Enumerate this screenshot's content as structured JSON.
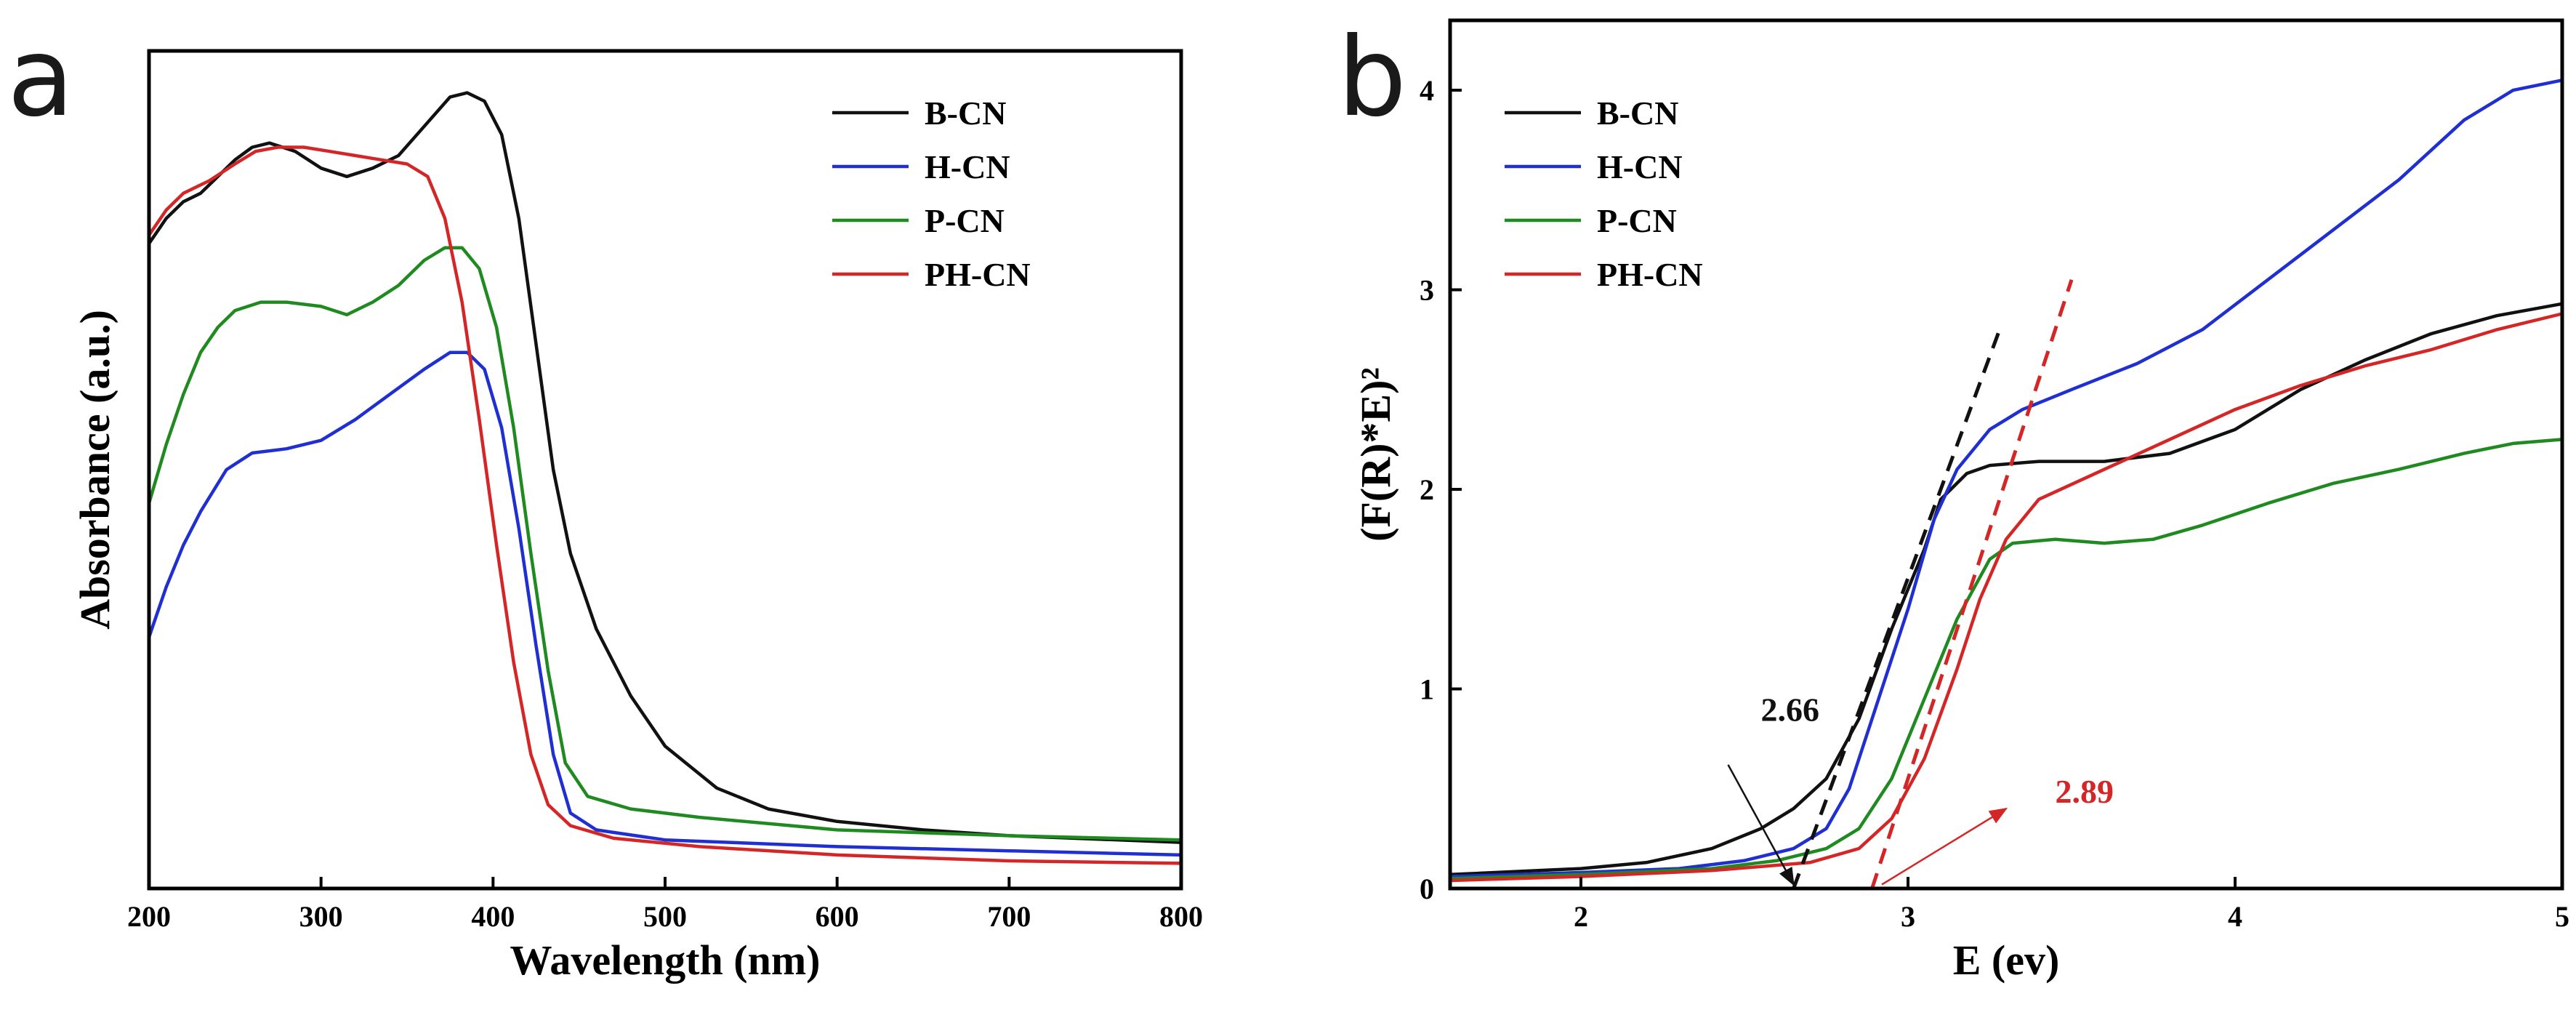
{
  "colors": {
    "B-CN": "#111111",
    "H-CN": "#1f2fd1",
    "P-CN": "#1f8a1f",
    "PH-CN": "#d42626"
  },
  "chart_data": [
    {
      "panel": "a",
      "type": "line",
      "xlabel": "Wavelength (nm)",
      "ylabel": "Absorbance (a.u.)",
      "xlim": [
        200,
        800
      ],
      "ylim": [
        0,
        1.0
      ],
      "xticks": [
        200,
        300,
        400,
        500,
        600,
        700,
        800
      ],
      "yticks": [],
      "legend": "top-right",
      "series": [
        {
          "name": "B-CN",
          "points": [
            [
              200,
              0.77
            ],
            [
              210,
              0.8
            ],
            [
              220,
              0.82
            ],
            [
              230,
              0.83
            ],
            [
              240,
              0.85
            ],
            [
              250,
              0.87
            ],
            [
              260,
              0.885
            ],
            [
              270,
              0.89
            ],
            [
              285,
              0.88
            ],
            [
              300,
              0.86
            ],
            [
              315,
              0.85
            ],
            [
              330,
              0.86
            ],
            [
              345,
              0.875
            ],
            [
              360,
              0.91
            ],
            [
              375,
              0.945
            ],
            [
              385,
              0.95
            ],
            [
              395,
              0.94
            ],
            [
              405,
              0.9
            ],
            [
              415,
              0.8
            ],
            [
              425,
              0.65
            ],
            [
              435,
              0.5
            ],
            [
              445,
              0.4
            ],
            [
              460,
              0.31
            ],
            [
              480,
              0.23
            ],
            [
              500,
              0.17
            ],
            [
              530,
              0.12
            ],
            [
              560,
              0.095
            ],
            [
              600,
              0.08
            ],
            [
              650,
              0.07
            ],
            [
              700,
              0.063
            ],
            [
              800,
              0.055
            ]
          ]
        },
        {
          "name": "H-CN",
          "points": [
            [
              200,
              0.3
            ],
            [
              210,
              0.36
            ],
            [
              220,
              0.41
            ],
            [
              230,
              0.45
            ],
            [
              245,
              0.5
            ],
            [
              260,
              0.52
            ],
            [
              280,
              0.525
            ],
            [
              300,
              0.535
            ],
            [
              320,
              0.56
            ],
            [
              340,
              0.59
            ],
            [
              360,
              0.62
            ],
            [
              375,
              0.64
            ],
            [
              385,
              0.64
            ],
            [
              395,
              0.62
            ],
            [
              405,
              0.55
            ],
            [
              415,
              0.43
            ],
            [
              425,
              0.29
            ],
            [
              435,
              0.16
            ],
            [
              445,
              0.09
            ],
            [
              460,
              0.07
            ],
            [
              500,
              0.058
            ],
            [
              600,
              0.05
            ],
            [
              700,
              0.045
            ],
            [
              800,
              0.04
            ]
          ]
        },
        {
          "name": "P-CN",
          "points": [
            [
              200,
              0.46
            ],
            [
              210,
              0.53
            ],
            [
              220,
              0.59
            ],
            [
              230,
              0.64
            ],
            [
              240,
              0.67
            ],
            [
              250,
              0.69
            ],
            [
              265,
              0.7
            ],
            [
              280,
              0.7
            ],
            [
              300,
              0.695
            ],
            [
              315,
              0.685
            ],
            [
              330,
              0.7
            ],
            [
              345,
              0.72
            ],
            [
              360,
              0.75
            ],
            [
              372,
              0.765
            ],
            [
              382,
              0.765
            ],
            [
              392,
              0.74
            ],
            [
              402,
              0.67
            ],
            [
              412,
              0.55
            ],
            [
              422,
              0.4
            ],
            [
              432,
              0.26
            ],
            [
              442,
              0.15
            ],
            [
              455,
              0.11
            ],
            [
              480,
              0.095
            ],
            [
              520,
              0.085
            ],
            [
              600,
              0.07
            ],
            [
              700,
              0.063
            ],
            [
              800,
              0.058
            ]
          ]
        },
        {
          "name": "PH-CN",
          "points": [
            [
              200,
              0.78
            ],
            [
              210,
              0.81
            ],
            [
              220,
              0.83
            ],
            [
              235,
              0.845
            ],
            [
              250,
              0.865
            ],
            [
              262,
              0.88
            ],
            [
              275,
              0.885
            ],
            [
              290,
              0.885
            ],
            [
              305,
              0.88
            ],
            [
              320,
              0.875
            ],
            [
              335,
              0.87
            ],
            [
              350,
              0.865
            ],
            [
              362,
              0.85
            ],
            [
              372,
              0.8
            ],
            [
              382,
              0.7
            ],
            [
              392,
              0.56
            ],
            [
              402,
              0.41
            ],
            [
              412,
              0.27
            ],
            [
              422,
              0.16
            ],
            [
              432,
              0.1
            ],
            [
              445,
              0.075
            ],
            [
              470,
              0.06
            ],
            [
              520,
              0.05
            ],
            [
              600,
              0.04
            ],
            [
              700,
              0.033
            ],
            [
              800,
              0.03
            ]
          ]
        }
      ]
    },
    {
      "panel": "b",
      "type": "line",
      "xlabel": "E (ev)",
      "ylabel": "(F(R)*E)²",
      "xlim": [
        1.6,
        5.0
      ],
      "ylim": [
        0,
        4.35
      ],
      "xticks": [
        2,
        3,
        4,
        5
      ],
      "yticks": [
        0,
        1,
        2,
        3,
        4
      ],
      "legend": "top-left",
      "series": [
        {
          "name": "B-CN",
          "points": [
            [
              1.6,
              0.07
            ],
            [
              2.0,
              0.1
            ],
            [
              2.2,
              0.13
            ],
            [
              2.4,
              0.2
            ],
            [
              2.55,
              0.3
            ],
            [
              2.65,
              0.4
            ],
            [
              2.75,
              0.55
            ],
            [
              2.85,
              0.85
            ],
            [
              2.95,
              1.3
            ],
            [
              3.05,
              1.7
            ],
            [
              3.1,
              1.95
            ],
            [
              3.18,
              2.08
            ],
            [
              3.25,
              2.12
            ],
            [
              3.4,
              2.14
            ],
            [
              3.6,
              2.14
            ],
            [
              3.8,
              2.18
            ],
            [
              4.0,
              2.3
            ],
            [
              4.2,
              2.5
            ],
            [
              4.4,
              2.65
            ],
            [
              4.6,
              2.78
            ],
            [
              4.8,
              2.87
            ],
            [
              5.0,
              2.93
            ]
          ]
        },
        {
          "name": "H-CN",
          "points": [
            [
              1.6,
              0.06
            ],
            [
              2.0,
              0.08
            ],
            [
              2.3,
              0.1
            ],
            [
              2.5,
              0.14
            ],
            [
              2.65,
              0.2
            ],
            [
              2.75,
              0.3
            ],
            [
              2.82,
              0.5
            ],
            [
              2.9,
              0.9
            ],
            [
              3.0,
              1.4
            ],
            [
              3.08,
              1.85
            ],
            [
              3.15,
              2.1
            ],
            [
              3.25,
              2.3
            ],
            [
              3.35,
              2.4
            ],
            [
              3.5,
              2.5
            ],
            [
              3.7,
              2.63
            ],
            [
              3.9,
              2.8
            ],
            [
              4.1,
              3.05
            ],
            [
              4.3,
              3.3
            ],
            [
              4.5,
              3.55
            ],
            [
              4.7,
              3.85
            ],
            [
              4.85,
              4.0
            ],
            [
              5.0,
              4.05
            ]
          ]
        },
        {
          "name": "P-CN",
          "points": [
            [
              1.6,
              0.05
            ],
            [
              2.0,
              0.07
            ],
            [
              2.4,
              0.1
            ],
            [
              2.6,
              0.14
            ],
            [
              2.75,
              0.2
            ],
            [
              2.85,
              0.3
            ],
            [
              2.95,
              0.55
            ],
            [
              3.05,
              0.95
            ],
            [
              3.15,
              1.35
            ],
            [
              3.25,
              1.65
            ],
            [
              3.32,
              1.73
            ],
            [
              3.45,
              1.75
            ],
            [
              3.6,
              1.73
            ],
            [
              3.75,
              1.75
            ],
            [
              3.9,
              1.82
            ],
            [
              4.1,
              1.93
            ],
            [
              4.3,
              2.03
            ],
            [
              4.5,
              2.1
            ],
            [
              4.7,
              2.18
            ],
            [
              4.85,
              2.23
            ],
            [
              5.0,
              2.25
            ]
          ]
        },
        {
          "name": "PH-CN",
          "points": [
            [
              1.6,
              0.04
            ],
            [
              2.0,
              0.06
            ],
            [
              2.4,
              0.09
            ],
            [
              2.7,
              0.13
            ],
            [
              2.85,
              0.2
            ],
            [
              2.95,
              0.35
            ],
            [
              3.05,
              0.65
            ],
            [
              3.15,
              1.1
            ],
            [
              3.22,
              1.45
            ],
            [
              3.3,
              1.75
            ],
            [
              3.4,
              1.95
            ],
            [
              3.6,
              2.1
            ],
            [
              3.8,
              2.25
            ],
            [
              4.0,
              2.4
            ],
            [
              4.2,
              2.52
            ],
            [
              4.4,
              2.62
            ],
            [
              4.6,
              2.7
            ],
            [
              4.8,
              2.8
            ],
            [
              5.0,
              2.88
            ]
          ]
        }
      ],
      "tangent_lines": [
        {
          "series": "B-CN",
          "from": [
            2.65,
            0.0
          ],
          "to": [
            3.28,
            2.8
          ]
        },
        {
          "series": "PH-CN",
          "from": [
            2.89,
            0.0
          ],
          "to": [
            3.5,
            3.05
          ]
        }
      ],
      "annotations": [
        {
          "text": "2.66",
          "series": "B-CN",
          "label_at": [
            2.55,
            0.84
          ],
          "arrow_from": [
            2.45,
            0.62
          ],
          "arrow_to": [
            2.65,
            0.02
          ]
        },
        {
          "text": "2.89",
          "series": "PH-CN",
          "label_at": [
            3.45,
            0.43
          ],
          "arrow_from": [
            2.92,
            0.02
          ],
          "arrow_to": [
            3.3,
            0.4
          ]
        }
      ]
    }
  ]
}
